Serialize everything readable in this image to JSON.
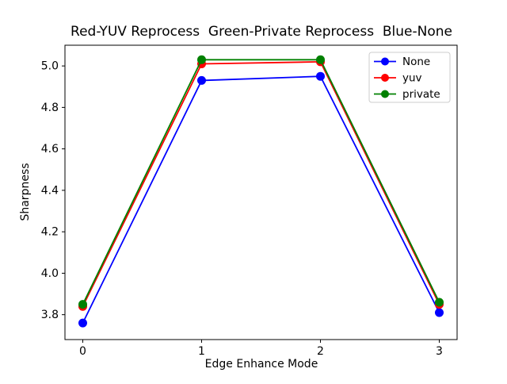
{
  "chart_data": {
    "type": "line",
    "title": "Red-YUV Reprocess  Green-Private Reprocess  Blue-None",
    "xlabel": "Edge Enhance Mode",
    "ylabel": "Sharpness",
    "x": [
      0,
      1,
      2,
      3
    ],
    "series": [
      {
        "name": "None",
        "color": "#0000ff",
        "values": [
          3.76,
          4.93,
          4.95,
          3.81
        ]
      },
      {
        "name": "yuv",
        "color": "#ff0000",
        "values": [
          3.84,
          5.01,
          5.02,
          3.85
        ]
      },
      {
        "name": "private",
        "color": "#008000",
        "values": [
          3.85,
          5.03,
          5.03,
          3.86
        ]
      }
    ],
    "xticks": [
      0,
      1,
      2,
      3
    ],
    "yticks": [
      3.8,
      4.0,
      4.2,
      4.4,
      4.6,
      4.8,
      5.0
    ],
    "xlim": [
      -0.15,
      3.15
    ],
    "ylim": [
      3.68,
      5.1
    ],
    "grid": false,
    "marker": "o",
    "legend_position": "upper right",
    "legend_border_color": "#cccccc",
    "axis_color": "#000000",
    "background_color": "#ffffff"
  }
}
